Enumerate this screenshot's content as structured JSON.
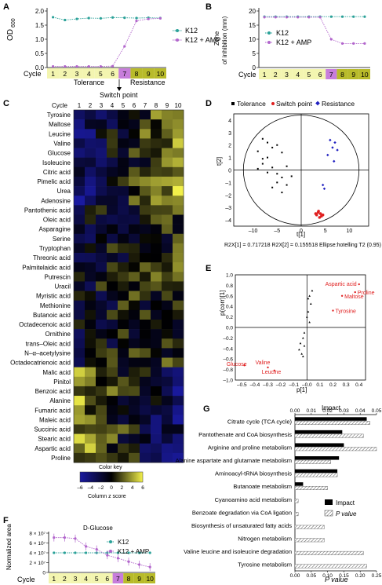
{
  "panels": {
    "A": {
      "letter": "A",
      "ylabel": "OD",
      "ylabel_sub": "600",
      "yticks": [
        "0.0",
        "0.5",
        "1.0",
        "1.5",
        "2.0"
      ],
      "cycle_label": "Cycle",
      "cycles": [
        "1",
        "2",
        "3",
        "4",
        "5",
        "6",
        "7",
        "8",
        "9",
        "10"
      ],
      "legend": [
        "K12",
        "K12 + AMP"
      ],
      "tolerance_label": "Tolerance",
      "resistance_label": "Resistance",
      "switch_label": "Switch point"
    },
    "B": {
      "letter": "B",
      "ylabel_line1": "Zone",
      "ylabel_line2": "of inhibition (mm)",
      "yticks": [
        "0",
        "5",
        "10",
        "15",
        "20"
      ],
      "cycle_label": "Cycle",
      "cycles": [
        "1",
        "2",
        "3",
        "4",
        "5",
        "6",
        "7",
        "8",
        "9",
        "10"
      ],
      "legend": [
        "K12",
        "K12 + AMP"
      ]
    },
    "C": {
      "letter": "C",
      "cycle_label": "Cycle",
      "cycles": [
        "1",
        "2",
        "3",
        "4",
        "5",
        "6",
        "7",
        "8",
        "9",
        "10"
      ],
      "metabolites": [
        "Tyrosine",
        "Maltose",
        "Leucine",
        "Valine",
        "Glucose",
        "Isoleucine",
        "Citric acid",
        "Pimelic acid",
        "Urea",
        "Adenosine",
        "Pantothenic acid",
        "Oleic acid",
        "Asparagine",
        "Serine",
        "Tryptophan",
        "Threonic acid",
        "Palmitelaidic acid",
        "Putrescin",
        "Uracil",
        "Myristic acid",
        "Methionine",
        "Butanoic acid",
        "Octadecenoic acid",
        "Ornithine",
        "trans–Oleic acid",
        "N–α–acetylysine",
        "Octadecatrienoic acid",
        "Malic acid",
        "Pinitol",
        "Benzoic acid",
        "Alanine",
        "Fumaric acid",
        "Maleic acid",
        "Succinic acid",
        "Stearic acid",
        "Aspartic acid",
        "Proline"
      ],
      "color_key_title": "Color key",
      "color_key_ticks": [
        "–6",
        "–4",
        "–2",
        "0",
        "2",
        "4",
        "6"
      ],
      "color_key_label": "Column z score"
    },
    "D": {
      "letter": "D",
      "legend": [
        "Tolerance",
        "Switch point",
        "Resistance"
      ],
      "xlabel": "t[1]",
      "ylabel": "t[2]",
      "xticks": [
        "–10",
        "–5",
        "0",
        "5",
        "10"
      ],
      "yticks": [
        "4",
        "3",
        "2",
        "1",
        "0",
        "–1",
        "–2",
        "–3",
        "–4"
      ],
      "footer": "R2X[1] = 0.717218   R2X[2] = 0.155518    Ellipse:hotelling T2 (0.95)"
    },
    "E": {
      "letter": "E",
      "xlabel": "p[1]",
      "ylabel": "p(corr)[1]",
      "xticks": [
        "–0.5",
        "–0.4",
        "–0.3",
        "–0.2",
        "–0.1",
        "–0.0",
        "0.1",
        "0.2",
        "0.3",
        "0.4"
      ],
      "yticks": [
        "1.0",
        "0.8",
        "0.6",
        "0.4",
        "0.2",
        "0.0",
        "–0.2",
        "–0.4",
        "–0.6",
        "–0.8",
        "–1.0"
      ],
      "labels": [
        "Aspartic acid",
        "Proline",
        "Maltose",
        "Tyrosine",
        "Glucose",
        "Valine",
        "Leucine"
      ]
    },
    "F": {
      "letter": "F",
      "title": "D-Glucose",
      "ylabel": "Normalized area",
      "yticks": [
        "0",
        "2 × 10⁷",
        "4 × 10⁷",
        "6 × 10⁷",
        "8 × 10⁷"
      ],
      "cycle_label": "Cycle",
      "cycles": [
        "1",
        "2",
        "3",
        "4",
        "5",
        "6",
        "7",
        "8",
        "9",
        "10"
      ],
      "legend": [
        "K12",
        "K12 + AMP"
      ]
    },
    "G": {
      "letter": "G",
      "top_axis_label": "Impact",
      "top_ticks": [
        "0.00",
        "0.01",
        "0.02",
        "0.03",
        "0.04",
        "0.05"
      ],
      "bottom_ticks": [
        "0.00",
        "0.05",
        "0.10",
        "0.15",
        "0.20",
        "0.25"
      ],
      "bottom_axis_label": "P value",
      "legend": [
        "Impact",
        "P value"
      ],
      "pathways": [
        "Citrate cycle (TCA cycle)",
        "Pantothenate and CoA biosynthesis",
        "Arginine and proline metabolism",
        "Alanine aspartate and glutamate metabolism",
        "Aminoacyl-tRNA biosynthesis",
        "Butanoate metabolism",
        "Cyanoamino acid metabolism",
        "Benzoate degradation via CoA ligation",
        "Biosynthesis of unsaturated fatty acids",
        "Nitrogen metabolism",
        "Valine leucine and isoleucine degradation",
        "Tyrosine metabolism"
      ]
    }
  },
  "colors": {
    "k12": "#2aa198",
    "amp": "#b266cc",
    "tolerance_band": "#f3f5b0",
    "switch_band": "#c77ddb",
    "resistance_band": "#b8bb2a",
    "heat_low": "#1a1aa0",
    "heat_mid": "#000000",
    "heat_high": "#f2f04a",
    "switch_point": "#e02020",
    "resistance": "#2020c0",
    "label_red": "#e02020"
  },
  "chart_data": [
    {
      "type": "line",
      "panel": "A",
      "x": [
        1,
        2,
        3,
        4,
        5,
        6,
        7,
        8,
        9,
        10
      ],
      "ylabel": "OD600",
      "ylim": [
        0,
        2.0
      ],
      "series": [
        {
          "name": "K12",
          "values": [
            1.78,
            1.68,
            1.72,
            1.75,
            1.74,
            1.77,
            1.76,
            1.75,
            1.76,
            1.75
          ]
        },
        {
          "name": "K12 + AMP",
          "values": [
            0.04,
            0.04,
            0.04,
            0.04,
            0.04,
            0.05,
            0.75,
            1.65,
            1.72,
            1.74
          ]
        }
      ]
    },
    {
      "type": "line",
      "panel": "B",
      "x": [
        1,
        2,
        3,
        4,
        5,
        6,
        7,
        8,
        9,
        10
      ],
      "ylabel": "Zone of inhibition (mm)",
      "ylim": [
        0,
        20
      ],
      "series": [
        {
          "name": "K12",
          "values": [
            18,
            18,
            18,
            18,
            18,
            18,
            18,
            18,
            18,
            18
          ]
        },
        {
          "name": "K12 + AMP",
          "values": [
            17.8,
            17.8,
            17.8,
            17.8,
            17.8,
            17.8,
            10,
            8.5,
            8.5,
            8.5
          ]
        }
      ]
    },
    {
      "type": "scatter",
      "panel": "D",
      "xlabel": "t[1]",
      "ylabel": "t[2]",
      "xlim": [
        -14,
        14
      ],
      "ylim": [
        -4.5,
        4.5
      ],
      "series": [
        {
          "name": "Tolerance",
          "points": [
            [
              -8,
              2.5
            ],
            [
              -7,
              2.2
            ],
            [
              -6,
              1.8
            ],
            [
              -9,
              1.5
            ],
            [
              -5,
              2.0
            ],
            [
              -4,
              1.4
            ],
            [
              -7,
              1.0
            ],
            [
              -8,
              0.5
            ],
            [
              -6,
              0.2
            ],
            [
              -5,
              -0.3
            ],
            [
              -4,
              -0.6
            ],
            [
              -7,
              -0.2
            ],
            [
              -3,
              -1.2
            ],
            [
              -5,
              -1.0
            ],
            [
              -6,
              -1.4
            ],
            [
              -4,
              -1.8
            ],
            [
              -2,
              -0.5
            ],
            [
              -3,
              0.3
            ],
            [
              -8,
              0.9
            ],
            [
              -9,
              0.1
            ]
          ]
        },
        {
          "name": "Switch point",
          "points": [
            [
              3.5,
              -3.4
            ],
            [
              4.0,
              -3.5
            ],
            [
              3.2,
              -3.6
            ],
            [
              4.2,
              -3.7
            ],
            [
              3.8,
              -3.8
            ],
            [
              3.0,
              -3.5
            ],
            [
              4.5,
              -3.6
            ],
            [
              3.6,
              -3.3
            ]
          ]
        },
        {
          "name": "Resistance",
          "points": [
            [
              6,
              2.4
            ],
            [
              7,
              2.2
            ],
            [
              6.5,
              1.8
            ],
            [
              7.5,
              1.6
            ],
            [
              5.5,
              1.2
            ],
            [
              6.8,
              0.7
            ],
            [
              4.5,
              -1.2
            ],
            [
              4.8,
              -1.5
            ]
          ]
        }
      ]
    },
    {
      "type": "scatter",
      "panel": "E",
      "xlabel": "p[1]",
      "ylabel": "p(corr)[1]",
      "xlim": [
        -0.55,
        0.45
      ],
      "ylim": [
        -1.0,
        1.0
      ],
      "series": [
        {
          "name": "labeled",
          "points": [
            [
              0.4,
              0.82
            ],
            [
              0.37,
              0.67
            ],
            [
              0.27,
              0.6
            ],
            [
              0.2,
              0.32
            ],
            [
              -0.48,
              -0.72
            ],
            [
              -0.3,
              -0.76
            ],
            [
              -0.25,
              -0.82
            ]
          ]
        },
        {
          "name": "other",
          "points": [
            [
              0.02,
              0.6
            ],
            [
              0.03,
              0.45
            ],
            [
              0.01,
              0.3
            ],
            [
              0.0,
              0.2
            ],
            [
              0.02,
              0.1
            ],
            [
              -0.02,
              -0.1
            ],
            [
              -0.03,
              -0.2
            ],
            [
              -0.05,
              -0.3
            ],
            [
              -0.02,
              -0.35
            ],
            [
              -0.06,
              -0.42
            ],
            [
              -0.04,
              -0.5
            ],
            [
              -0.03,
              -0.55
            ],
            [
              0.01,
              0.55
            ],
            [
              0.04,
              0.7
            ]
          ]
        }
      ]
    },
    {
      "type": "line",
      "panel": "F",
      "x": [
        1,
        2,
        3,
        4,
        5,
        6,
        7,
        8,
        9,
        10
      ],
      "title": "D-Glucose",
      "ylabel": "Normalized area",
      "ylim": [
        0,
        80000000
      ],
      "series": [
        {
          "name": "K12",
          "values": [
            40000000,
            40000000,
            40000000,
            40000000,
            40000000,
            40000000,
            40000000,
            40000000,
            40000000,
            40000000
          ]
        },
        {
          "name": "K12 + AMP",
          "values": [
            71000000,
            71000000,
            69000000,
            53000000,
            47000000,
            35000000,
            29000000,
            22000000,
            16000000,
            11000000
          ]
        }
      ]
    },
    {
      "type": "bar",
      "panel": "G",
      "categories": [
        "Citrate cycle (TCA cycle)",
        "Pantothenate and CoA biosynthesis",
        "Arginine and proline metabolism",
        "Alanine aspartate and glutamate metabolism",
        "Aminoacyl-tRNA biosynthesis",
        "Butanoate metabolism",
        "Cyanoamino acid metabolism",
        "Benzoate degradation via CoA ligation",
        "Biosynthesis of unsaturated fatty acids",
        "Nitrogen metabolism",
        "Valine leucine and isoleucine degradation",
        "Tyrosine metabolism"
      ],
      "series": [
        {
          "name": "Impact",
          "values": [
            0.044,
            0.029,
            0.03,
            0.027,
            0.026,
            0.005,
            0.0,
            0.0,
            0.0,
            0.0,
            0.0,
            0.0
          ]
        },
        {
          "name": "P value",
          "values": [
            0.23,
            0.21,
            0.25,
            0.11,
            0.13,
            0.1,
            0.01,
            0.01,
            0.09,
            0.09,
            0.21,
            0.22
          ]
        }
      ],
      "xlim_impact": [
        0,
        0.05
      ],
      "xlim_pvalue": [
        0,
        0.25
      ]
    }
  ]
}
